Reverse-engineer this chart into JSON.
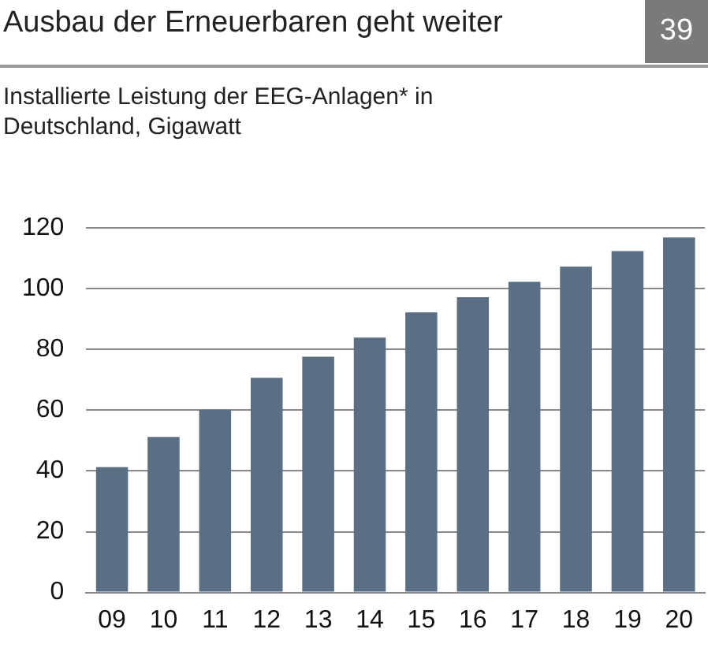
{
  "chart_data": {
    "type": "bar",
    "title": "Ausbau der Erneuerbaren geht weiter",
    "subtitle": "Installierte Leistung der EEG-Anlagen* in Deutschland, Gigawatt",
    "annotations": [
      "39"
    ],
    "categories": [
      "09",
      "10",
      "11",
      "12",
      "13",
      "14",
      "15",
      "16",
      "17",
      "18",
      "19",
      "20"
    ],
    "values": [
      41.3,
      51.2,
      60.2,
      70.7,
      77.6,
      83.9,
      92.2,
      97.2,
      102.3,
      107.3,
      112.4,
      116.9
    ],
    "color": "#5b6f84",
    "ylim": [
      0,
      120
    ],
    "yticks": [
      0,
      20,
      40,
      60,
      80,
      100,
      120
    ],
    "grid": "y",
    "legend": false
  }
}
